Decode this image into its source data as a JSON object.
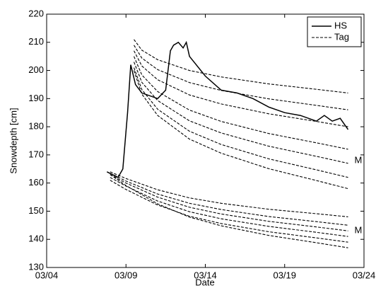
{
  "chart_data": {
    "type": "line",
    "xlabel": "Date",
    "ylabel": "Snowdepth [cm]",
    "xlim": [
      4,
      24
    ],
    "ylim": [
      130,
      220
    ],
    "xticks": [
      {
        "value": 4,
        "label": "03/04"
      },
      {
        "value": 9,
        "label": "03/09"
      },
      {
        "value": 14,
        "label": "03/14"
      },
      {
        "value": 19,
        "label": "03/19"
      },
      {
        "value": 24,
        "label": "03/24"
      }
    ],
    "yticks": [
      130,
      140,
      150,
      160,
      170,
      180,
      190,
      200,
      210,
      220
    ],
    "legend": "top-right",
    "series": [
      {
        "name": "HS",
        "color": "#000000",
        "style": "solid",
        "x": [
          7.8,
          8.5,
          8.8,
          9.1,
          9.3,
          9.6,
          10,
          11,
          11.5,
          11.8,
          12,
          12.3,
          12.6,
          12.8,
          13,
          14,
          15,
          16,
          17,
          18,
          19,
          20,
          21,
          21.5,
          22,
          22.5,
          23
        ],
        "values": [
          164,
          162,
          165,
          185,
          202,
          195,
          192,
          190,
          193,
          207,
          209,
          210,
          208,
          210,
          205,
          198,
          193,
          192,
          190,
          187,
          185,
          184,
          182,
          184,
          182,
          183,
          179
        ]
      },
      {
        "name": "Tag",
        "color": "#000000",
        "style": "dashed",
        "lines": [
          {
            "x": [
              9.5,
              10,
              11,
              13,
              15,
              18,
              21,
              23
            ],
            "values": [
              211,
              207.2,
              203.8,
              200,
              197.7,
              195.2,
              193.3,
              192
            ]
          },
          {
            "x": [
              9.5,
              10,
              11,
              13,
              15,
              18,
              21,
              23
            ],
            "values": [
              209,
              204.4,
              200.3,
              195.7,
              192.9,
              189.9,
              187.6,
              186
            ]
          },
          {
            "x": [
              9.5,
              10,
              11,
              13,
              15,
              18,
              21,
              23
            ],
            "values": [
              207,
              201.6,
              196.7,
              191.3,
              188.1,
              184.6,
              181.9,
              180
            ]
          },
          {
            "x": [
              9.5,
              10,
              11,
              13,
              15,
              18,
              21,
              23
            ],
            "values": [
              205,
              198.4,
              192.5,
              185.9,
              181.9,
              177.6,
              174.3,
              172
            ]
          },
          {
            "x": [
              9.5,
              10,
              11,
              13,
              15,
              18,
              21,
              23
            ],
            "values": [
              203,
              195.8,
              189.3,
              182.1,
              177.8,
              173.1,
              169.5,
              167
            ]
          },
          {
            "x": [
              9.5,
              10,
              11,
              13,
              15,
              18,
              21,
              23
            ],
            "values": [
              201,
              193.2,
              186.2,
              178.4,
              173.7,
              168.6,
              164.7,
              162
            ]
          },
          {
            "x": [
              9.5,
              10,
              11,
              13,
              15,
              18,
              21,
              23
            ],
            "values": [
              200,
              191.6,
              184,
              175.6,
              170.6,
              165.1,
              160.9,
              158
            ]
          },
          {
            "x": [
              8,
              9,
              11,
              13,
              15,
              18,
              21,
              23
            ],
            "values": [
              164,
              161.6,
              157.6,
              154.7,
              152.8,
              150.7,
              149.1,
              148
            ]
          },
          {
            "x": [
              8,
              9,
              11,
              13,
              15,
              18,
              21,
              23
            ],
            "values": [
              163.5,
              160.7,
              156.1,
              152.8,
              150.6,
              148.1,
              146.3,
              145
            ]
          },
          {
            "x": [
              8,
              9,
              11,
              13,
              15,
              18,
              21,
              23
            ],
            "values": [
              163,
              160,
              155,
              151.4,
              149,
              146.4,
              144.4,
              143
            ]
          },
          {
            "x": [
              8,
              9,
              11,
              13,
              15,
              18,
              21,
              23
            ],
            "values": [
              162,
              158.9,
              153.6,
              149.8,
              147.3,
              144.6,
              142.5,
              141
            ]
          },
          {
            "x": [
              8,
              9,
              11,
              13,
              15,
              18,
              21,
              23
            ],
            "values": [
              161,
              157.7,
              152.2,
              148.2,
              145.6,
              142.7,
              140.5,
              139
            ]
          },
          {
            "x": [
              8,
              9,
              11,
              13,
              15,
              18,
              21,
              23
            ],
            "values": [
              163,
              159.1,
              152.6,
              147.9,
              144.8,
              141.4,
              138.8,
              137
            ]
          }
        ]
      }
    ],
    "annotations": [
      {
        "text": "M",
        "x": 23.4,
        "y": 168
      },
      {
        "text": "M",
        "x": 23.4,
        "y": 143
      }
    ]
  }
}
